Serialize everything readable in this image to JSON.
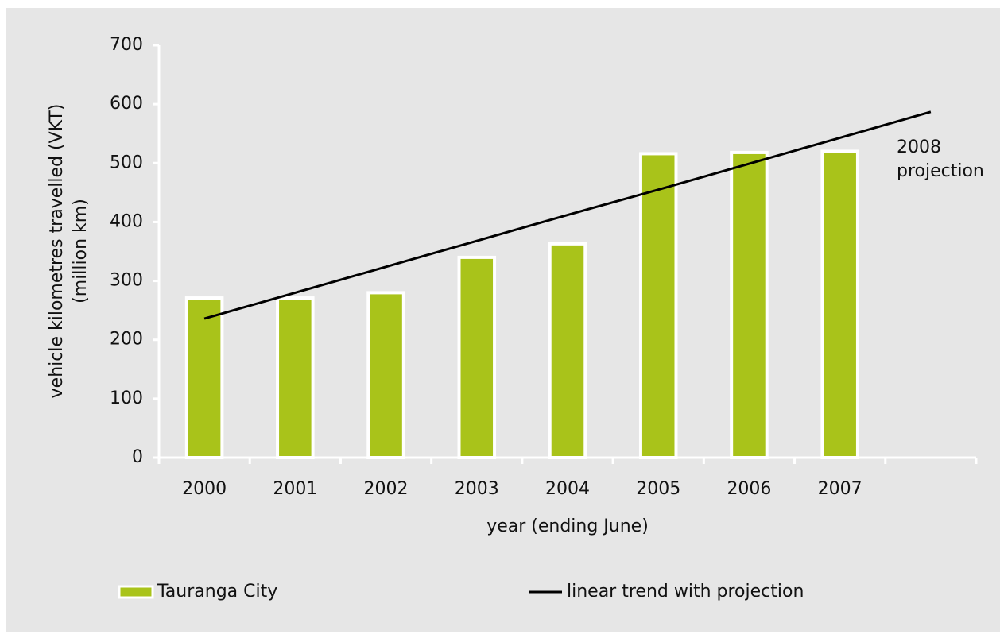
{
  "chart_data": {
    "type": "bar",
    "y_label": [
      "vehicle kilometres travelled (VKT)",
      "(million km)"
    ],
    "x_label": "year (ending June)",
    "categories": [
      "2000",
      "2001",
      "2002",
      "2003",
      "2004",
      "2005",
      "2006",
      "2007",
      null
    ],
    "series": [
      {
        "name": "Tauranga City",
        "type": "bar",
        "color": "#a9c31a",
        "values": [
          271,
          271,
          280,
          340,
          363,
          516,
          518,
          520,
          null
        ]
      },
      {
        "name": "linear trend with projection",
        "type": "line",
        "color": "#000000",
        "values": [
          236,
          280,
          324,
          368,
          412,
          455,
          499,
          543,
          587
        ]
      }
    ],
    "annotation": [
      "2008",
      "projection"
    ],
    "ylim": [
      0,
      700
    ],
    "yticks": [
      0,
      100,
      200,
      300,
      400,
      500,
      600,
      700
    ],
    "grid": false,
    "legend": "bottom"
  }
}
